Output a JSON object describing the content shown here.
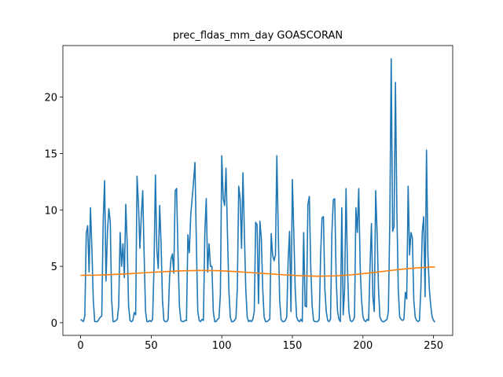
{
  "chart_data": {
    "type": "line",
    "title": "prec_fldas_mm_day GOASCORAN",
    "xlim": [
      -12.55,
      263.55
    ],
    "ylim": [
      -1.12,
      24.57
    ],
    "xticks": [
      0,
      50,
      100,
      150,
      200,
      250
    ],
    "yticks": [
      0,
      5,
      10,
      15,
      20
    ],
    "grid": false,
    "series": [
      {
        "color": "#1f77b4",
        "x": [
          0,
          1,
          2,
          3,
          4,
          5,
          6,
          7,
          8,
          9,
          10,
          11,
          12,
          13,
          14,
          15,
          16,
          17,
          18,
          19,
          20,
          21,
          22,
          23,
          24,
          25,
          26,
          27,
          28,
          29,
          30,
          31,
          32,
          33,
          34,
          35,
          36,
          37,
          38,
          39,
          40,
          41,
          42,
          43,
          44,
          45,
          46,
          47,
          48,
          49,
          50,
          51,
          52,
          53,
          54,
          55,
          56,
          57,
          58,
          59,
          60,
          61,
          62,
          63,
          64,
          65,
          66,
          67,
          68,
          69,
          70,
          71,
          72,
          73,
          74,
          75,
          76,
          77,
          78,
          79,
          80,
          81,
          82,
          83,
          84,
          85,
          86,
          87,
          88,
          89,
          90,
          91,
          92,
          93,
          94,
          95,
          96,
          97,
          98,
          99,
          100,
          101,
          102,
          103,
          104,
          105,
          106,
          107,
          108,
          109,
          110,
          111,
          112,
          113,
          114,
          115,
          116,
          117,
          118,
          119,
          120,
          121,
          122,
          123,
          124,
          125,
          126,
          127,
          128,
          129,
          130,
          131,
          132,
          133,
          134,
          135,
          136,
          137,
          138,
          139,
          140,
          141,
          142,
          143,
          144,
          145,
          146,
          147,
          148,
          149,
          150,
          151,
          152,
          153,
          154,
          155,
          156,
          157,
          158,
          159,
          160,
          161,
          162,
          163,
          164,
          165,
          166,
          167,
          168,
          169,
          170,
          171,
          172,
          173,
          174,
          175,
          176,
          177,
          178,
          179,
          180,
          181,
          182,
          183,
          184,
          185,
          186,
          187,
          188,
          189,
          190,
          191,
          192,
          193,
          194,
          195,
          196,
          197,
          198,
          199,
          200,
          201,
          202,
          203,
          204,
          205,
          206,
          207,
          208,
          209,
          210,
          211,
          212,
          213,
          214,
          215,
          216,
          217,
          218,
          219,
          220,
          221,
          222,
          223,
          224,
          225,
          226,
          227,
          228,
          229,
          230,
          231,
          232,
          233,
          234,
          235,
          236,
          237,
          238,
          239,
          240,
          241,
          242,
          243,
          244,
          245,
          246,
          247,
          248,
          249,
          250,
          251
        ],
        "values": [
          0.3,
          0.2,
          0.1,
          0.6,
          7.9,
          8.6,
          4.5,
          10.2,
          6.5,
          2,
          0.1,
          0.1,
          0.1,
          0.3,
          0.5,
          0.6,
          9,
          12.6,
          3.7,
          8,
          10.1,
          9,
          2,
          0.1,
          0.1,
          0.2,
          0.3,
          1.5,
          8,
          5,
          7,
          4,
          10.5,
          7,
          1.5,
          0.2,
          0.1,
          0.2,
          0.9,
          0.7,
          13,
          10.5,
          6.6,
          9.5,
          11.7,
          6,
          1,
          0.1,
          0.1,
          0.2,
          0.1,
          0.3,
          5,
          13.1,
          6.5,
          4.8,
          10.4,
          7,
          2,
          0.2,
          0.1,
          0.1,
          0.3,
          4,
          5.6,
          6.1,
          4.4,
          11.7,
          11.9,
          6,
          1.5,
          0.2,
          0.1,
          0.1,
          0.2,
          0.2,
          7.8,
          6.2,
          9.5,
          11,
          12.5,
          14.2,
          7,
          1,
          0.2,
          0.1,
          0.3,
          0.2,
          8,
          11,
          4.5,
          7,
          5,
          5,
          1,
          0.1,
          0.1,
          0.3,
          0.4,
          2.5,
          14.8,
          11,
          10.4,
          13.7,
          8,
          3,
          0.5,
          0.1,
          0.1,
          0.2,
          0.4,
          3,
          12.1,
          11,
          6.6,
          13.3,
          8,
          3,
          0.5,
          0.1,
          0.2,
          0.1,
          0.3,
          1,
          8.9,
          8.7,
          1.7,
          9,
          7.5,
          3,
          0.5,
          0.1,
          0.1,
          0.2,
          0.3,
          7.9,
          6,
          5.5,
          6,
          14.8,
          8,
          2,
          0.3,
          0.1,
          0.1,
          0.2,
          0.5,
          5.5,
          8.1,
          1,
          12.7,
          8,
          3,
          0.5,
          0.2,
          0.1,
          0.3,
          0.1,
          8,
          1.5,
          1.4,
          10.5,
          11.2,
          5,
          1.5,
          0.2,
          0.1,
          0.1,
          0.1,
          0.3,
          6,
          9.3,
          9.4,
          3,
          1,
          0.2,
          0.1,
          0.3,
          8,
          10.9,
          11,
          4,
          1,
          0.3,
          0.1,
          10.2,
          0.7,
          3,
          11.9,
          5,
          1,
          0.2,
          0.1,
          0.2,
          0.5,
          10.2,
          8,
          11.9,
          5,
          2,
          0.5,
          0.2,
          0.1,
          0.3,
          0.2,
          5,
          8.8,
          2.3,
          1,
          11.7,
          8,
          3,
          0.5,
          0.2,
          0.1,
          0.1,
          0.2,
          0.3,
          1,
          9,
          23.4,
          8.1,
          8.5,
          21.3,
          10,
          3,
          0.5,
          0.3,
          0.2,
          0.3,
          2.7,
          2.1,
          12.1,
          6,
          8,
          7.5,
          2,
          0.5,
          0.2,
          0.1,
          0.2,
          3,
          8,
          9.4,
          2.3,
          15.3,
          6,
          3,
          1.5,
          0.5,
          0.2,
          0.05
        ]
      },
      {
        "color": "#ff7f0e",
        "x": [
          0,
          12,
          24,
          36,
          48,
          60,
          72,
          84,
          96,
          108,
          120,
          132,
          144,
          156,
          168,
          180,
          192,
          204,
          216,
          228,
          240,
          251
        ],
        "values": [
          4.2,
          4.22,
          4.28,
          4.36,
          4.45,
          4.53,
          4.6,
          4.64,
          4.62,
          4.55,
          4.45,
          4.35,
          4.25,
          4.16,
          4.12,
          4.15,
          4.25,
          4.4,
          4.58,
          4.75,
          4.88,
          4.95
        ]
      }
    ]
  }
}
